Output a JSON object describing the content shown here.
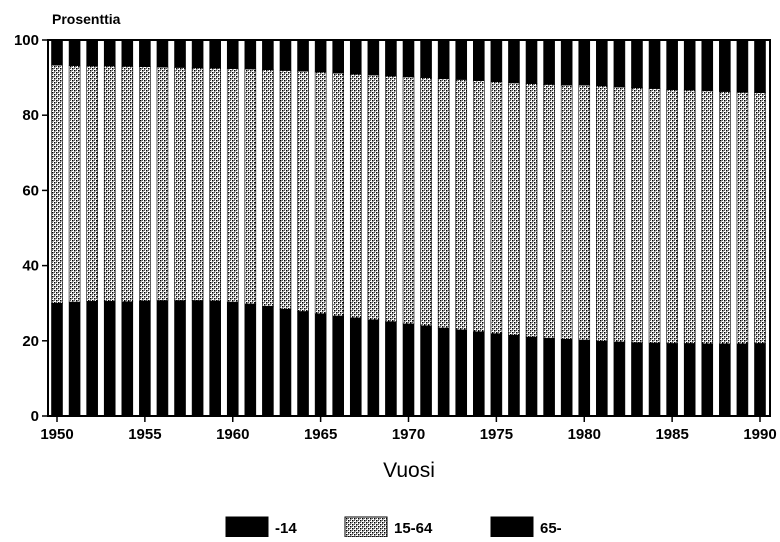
{
  "chart_data": {
    "type": "bar",
    "stacked": true,
    "ylabel": "Prosenttia",
    "xlabel": "Vuosi",
    "xlim": [
      1950,
      1990
    ],
    "ylim": [
      0,
      100
    ],
    "x_ticks": [
      1950,
      1955,
      1960,
      1965,
      1970,
      1975,
      1980,
      1985,
      1990
    ],
    "y_ticks": [
      0,
      20,
      40,
      60,
      80,
      100
    ],
    "grid": false,
    "legend_position": "bottom",
    "categories": [
      1950,
      1951,
      1952,
      1953,
      1954,
      1955,
      1956,
      1957,
      1958,
      1959,
      1960,
      1961,
      1962,
      1963,
      1964,
      1965,
      1966,
      1967,
      1968,
      1969,
      1970,
      1971,
      1972,
      1973,
      1974,
      1975,
      1976,
      1977,
      1978,
      1979,
      1980,
      1981,
      1982,
      1983,
      1984,
      1985,
      1986,
      1987,
      1988,
      1989,
      1990
    ],
    "series": [
      {
        "name": "-14",
        "pattern": "solid",
        "color": "#000000",
        "values": [
          30.0,
          30.3,
          30.5,
          30.5,
          30.4,
          30.6,
          30.7,
          30.7,
          30.7,
          30.6,
          30.3,
          29.8,
          29.2,
          28.4,
          27.8,
          27.2,
          26.6,
          26.1,
          25.6,
          25.1,
          24.5,
          24.0,
          23.4,
          22.9,
          22.4,
          21.9,
          21.5,
          21.0,
          20.7,
          20.4,
          20.2,
          19.9,
          19.7,
          19.5,
          19.4,
          19.3,
          19.3,
          19.2,
          19.2,
          19.2,
          19.3
        ]
      },
      {
        "name": "15-64",
        "pattern": "crosshatch",
        "color": "#b4b4b4",
        "values": [
          63.3,
          62.9,
          62.6,
          62.6,
          62.6,
          62.3,
          62.1,
          62.0,
          61.9,
          61.9,
          62.1,
          62.5,
          62.9,
          63.5,
          63.9,
          64.3,
          64.6,
          64.8,
          65.1,
          65.3,
          65.7,
          66.0,
          66.3,
          66.6,
          66.8,
          67.0,
          67.1,
          67.4,
          67.5,
          67.6,
          67.8,
          67.9,
          67.8,
          67.8,
          67.7,
          67.5,
          67.4,
          67.3,
          67.1,
          66.9,
          66.7
        ]
      },
      {
        "name": "65-",
        "pattern": "solid",
        "color": "#000000",
        "values": [
          6.7,
          6.8,
          6.9,
          6.9,
          7.0,
          7.1,
          7.2,
          7.3,
          7.4,
          7.5,
          7.6,
          7.7,
          7.9,
          8.1,
          8.3,
          8.5,
          8.8,
          9.1,
          9.3,
          9.6,
          9.8,
          10.0,
          10.3,
          10.5,
          10.8,
          11.1,
          11.4,
          11.6,
          11.8,
          12.0,
          12.0,
          12.2,
          12.5,
          12.7,
          12.9,
          13.2,
          13.3,
          13.5,
          13.7,
          13.9,
          14.0
        ]
      }
    ]
  }
}
